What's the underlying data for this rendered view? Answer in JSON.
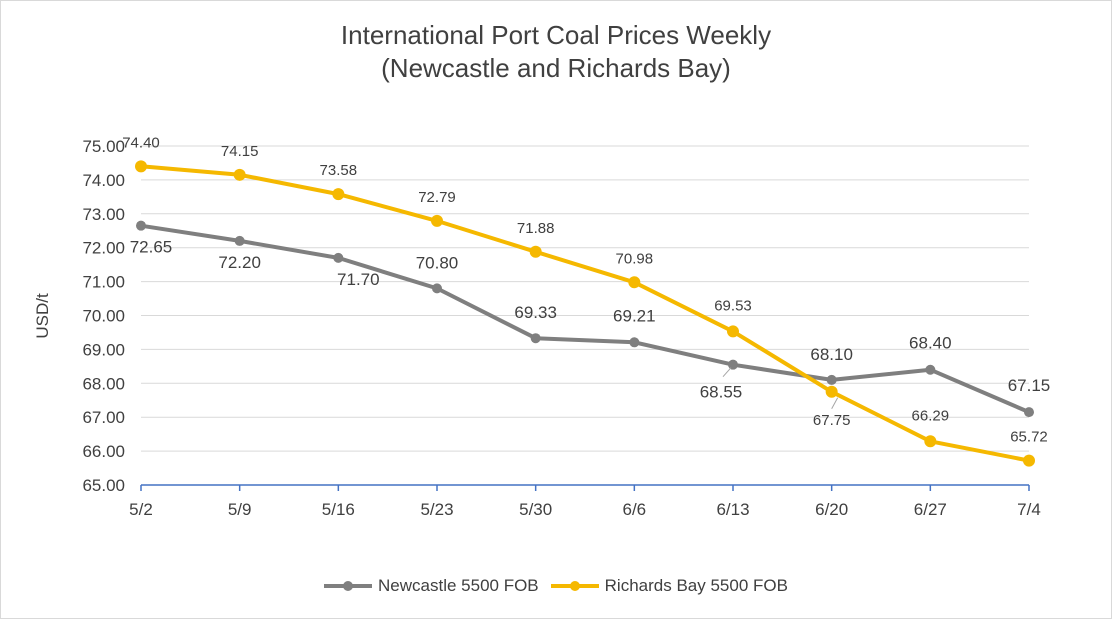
{
  "chart_data": {
    "type": "line",
    "title": [
      "International Port Coal Prices Weekly",
      "(Newcastle and Richards Bay)"
    ],
    "xlabel": "",
    "ylabel": "USD/t",
    "categories": [
      "5/2",
      "5/9",
      "5/16",
      "5/23",
      "5/30",
      "6/6",
      "6/13",
      "6/20",
      "6/27",
      "7/4"
    ],
    "ylim": [
      65,
      75
    ],
    "yticks": [
      "65.00",
      "66.00",
      "67.00",
      "68.00",
      "69.00",
      "70.00",
      "71.00",
      "72.00",
      "73.00",
      "74.00",
      "75.00"
    ],
    "grid": true,
    "legend_position": "bottom",
    "series": [
      {
        "name": "Newcastle 5500 FOB",
        "color": "#7f7f7f",
        "values": [
          72.65,
          72.2,
          71.7,
          70.8,
          69.33,
          69.21,
          68.55,
          68.1,
          68.4,
          67.15
        ],
        "labels": [
          "72.65",
          "72.20",
          "71.70",
          "70.80",
          "69.33",
          "69.21",
          "68.55",
          "68.10",
          "68.40",
          "67.15"
        ]
      },
      {
        "name": "Richards Bay 5500 FOB",
        "color": "#f5b800",
        "values": [
          74.4,
          74.15,
          73.58,
          72.79,
          71.88,
          70.98,
          69.53,
          67.75,
          66.29,
          65.72
        ],
        "labels": [
          "74.40",
          "74.15",
          "73.58",
          "72.79",
          "71.88",
          "70.98",
          "69.53",
          "67.75",
          "66.29",
          "65.72"
        ]
      }
    ]
  }
}
